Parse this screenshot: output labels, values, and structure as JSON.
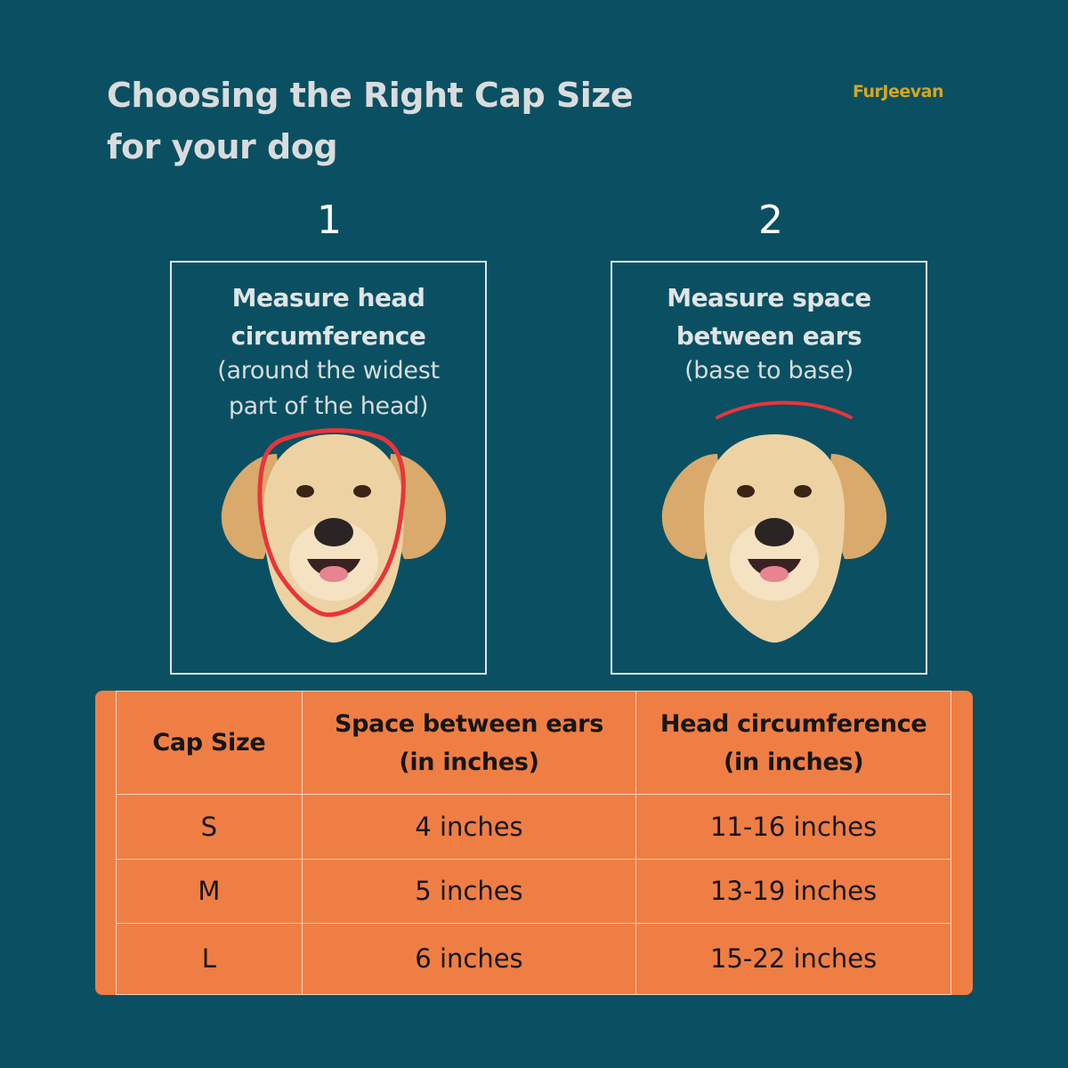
{
  "title_line1": "Choosing the Right Cap Size",
  "title_line2": "for your dog",
  "brand": "FurJeevan",
  "steps": [
    {
      "number": "1",
      "title_line1": "Measure head",
      "title_line2": "circumference",
      "sub_line1": "(around the widest",
      "sub_line2": "part of the head)"
    },
    {
      "number": "2",
      "title_line1": "Measure space",
      "title_line2": "between ears",
      "sub_line1": "(base to base)"
    }
  ],
  "table": {
    "headers": [
      "Cap Size",
      "Space between ears (in inches)",
      "Head circumference (in inches)"
    ],
    "header_lines": {
      "c1": "Cap Size",
      "c2a": "Space between ears",
      "c2b": "(in inches)",
      "c3a": "Head circumference",
      "c3b": "(in inches)"
    },
    "rows": [
      [
        "S",
        "4 inches",
        "11-16 inches"
      ],
      [
        "M",
        "5 inches",
        "13-19 inches"
      ],
      [
        "L",
        "6 inches",
        "15-22 inches"
      ]
    ]
  },
  "colors": {
    "background": "#0a5062",
    "table_fill": "#ef7e44",
    "brand": "#d4a623",
    "measure_line": "#e8353a"
  }
}
